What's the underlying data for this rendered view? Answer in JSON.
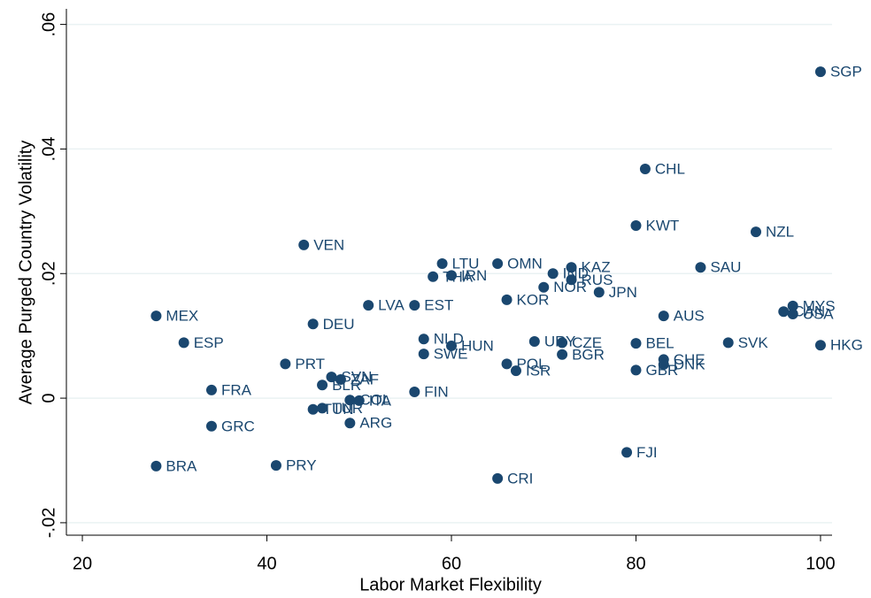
{
  "chart_data": {
    "type": "scatter",
    "xlabel": "Labor Market Flexibility",
    "ylabel": "Average Purged Country Volatility",
    "xlim": [
      18.27,
      101.25
    ],
    "ylim": [
      -0.022,
      0.0625
    ],
    "xticks": [
      20,
      40,
      60,
      80,
      100
    ],
    "yticks": [
      {
        "value": -0.02,
        "label": "-.02"
      },
      0,
      {
        "value": 0.02,
        "label": ".02"
      },
      {
        "value": 0.04,
        "label": ".04"
      },
      {
        "value": 0.06,
        "label": ".06"
      }
    ],
    "grid": true,
    "series": [
      {
        "color": "#1a476f",
        "labels": [
          "SGP",
          "CHL",
          "KWT",
          "NZL",
          "VEN",
          "LTU",
          "OMN",
          "KAZ",
          "SAU",
          "THA",
          "IRN",
          "IND",
          "RUS",
          "NOR",
          "JPN",
          "KOR",
          "LVA",
          "EST",
          "MYS",
          "CAN",
          "USA",
          "MEX",
          "AUS",
          "DEU",
          "NLD",
          "URY",
          "CZE",
          "ESP",
          "BEL",
          "SVK",
          "HKG",
          "HUN",
          "SWE",
          "BGR",
          "CHE",
          "PRT",
          "POL",
          "DNK",
          "GBR",
          "ISR",
          "SVN",
          "ZAF",
          "BLR",
          "FRA",
          "FIN",
          "COL",
          "ITA",
          "TUR",
          "TUN",
          "ARG",
          "GRC",
          "FJI",
          "BRA",
          "PRY",
          "CRI"
        ],
        "x": [
          100,
          81,
          80,
          93,
          44,
          59,
          65,
          73,
          87,
          58,
          60,
          71,
          73,
          70,
          76,
          66,
          51,
          56,
          97,
          96,
          97,
          28,
          83,
          45,
          57,
          69,
          72,
          31,
          80,
          90,
          100,
          60,
          57,
          72,
          83,
          42,
          66,
          83,
          80,
          67,
          47,
          48,
          46,
          34,
          56,
          49,
          50,
          46,
          45,
          49,
          34,
          79,
          28,
          41,
          65
        ],
        "values": [
          0.0524,
          0.0368,
          0.0277,
          0.0267,
          0.0246,
          0.0216,
          0.0216,
          0.021,
          0.021,
          0.0195,
          0.0197,
          0.02,
          0.019,
          0.0178,
          0.017,
          0.0158,
          0.0149,
          0.0149,
          0.0148,
          0.0139,
          0.0135,
          0.0132,
          0.0132,
          0.0119,
          0.0095,
          0.0091,
          0.0089,
          0.0089,
          0.0088,
          0.0089,
          0.0085,
          0.0084,
          0.0071,
          0.007,
          0.0062,
          0.0055,
          0.0055,
          0.0054,
          0.0045,
          0.0044,
          0.0034,
          0.003,
          0.0021,
          0.0013,
          0.001,
          -0.0003,
          -0.0004,
          -0.0016,
          -0.0018,
          -0.004,
          -0.0045,
          -0.0087,
          -0.0109,
          -0.0108,
          -0.0129
        ]
      }
    ]
  }
}
